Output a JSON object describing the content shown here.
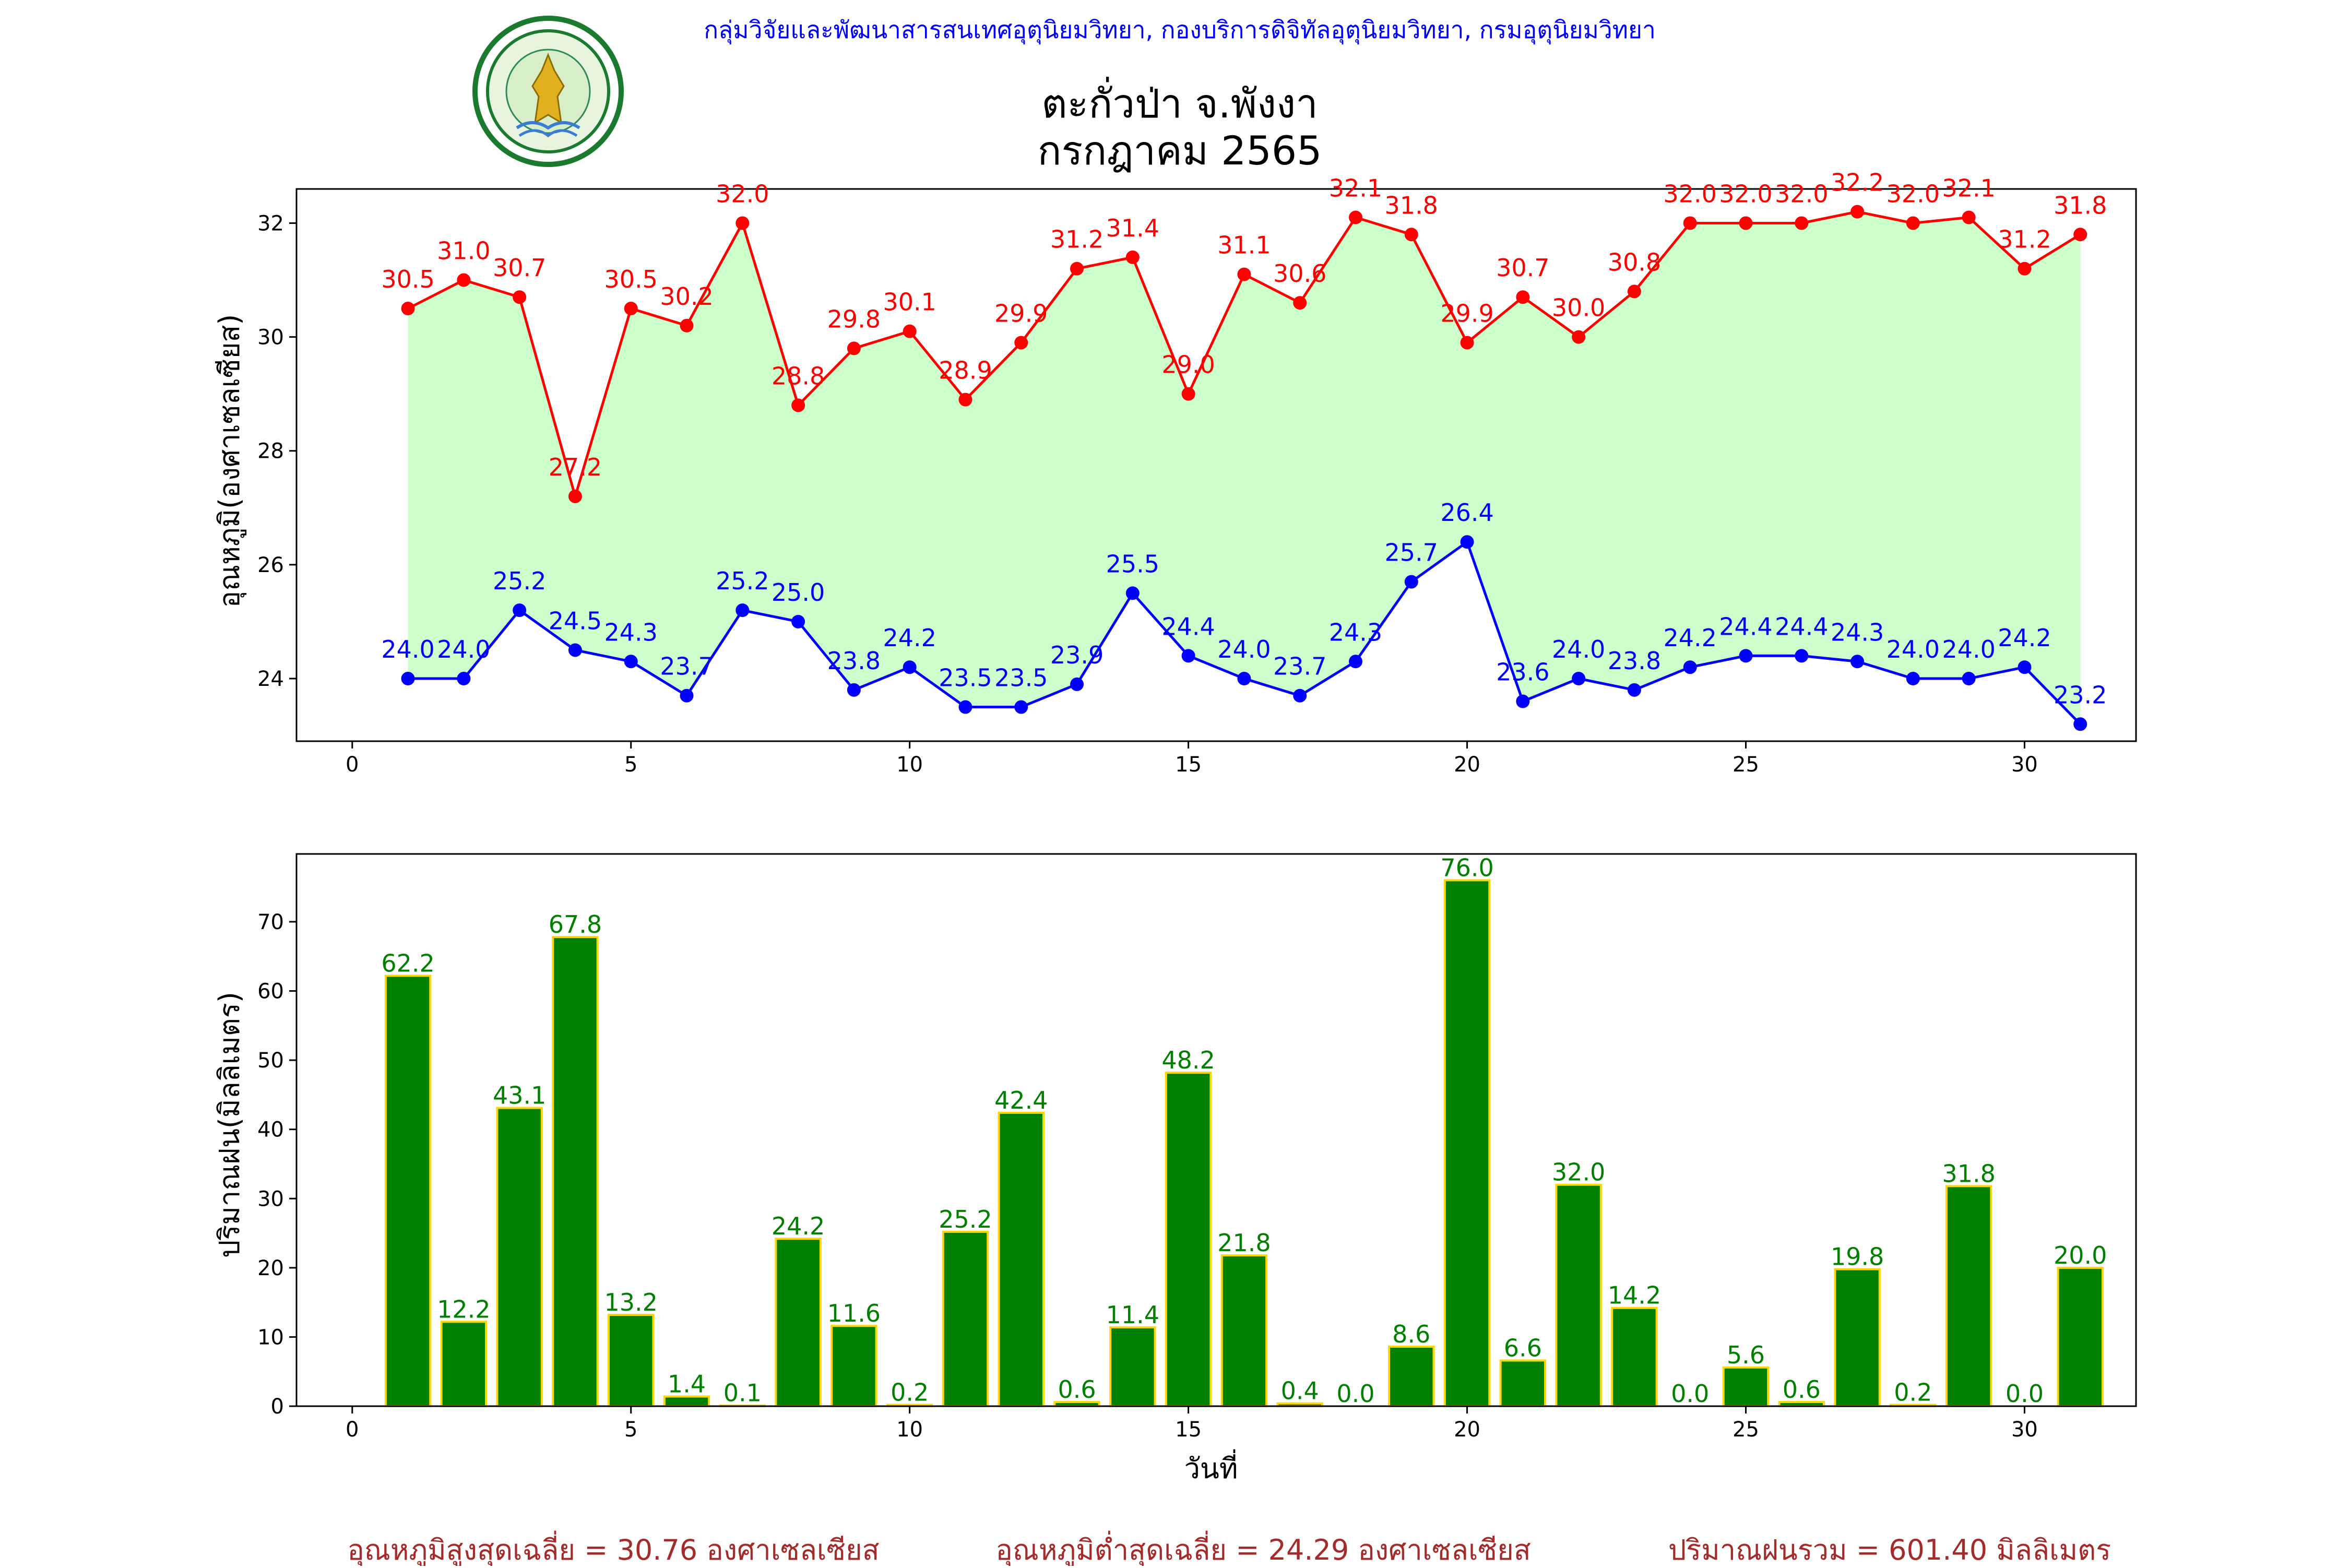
{
  "header": {
    "agency_line": "กลุ่มวิจัยและพัฒนาสารสนเทศอุตุนิยมวิทยา, กองบริการดิจิทัลอุตุนิยมวิทยา, กรมอุตุนิยมวิทยา",
    "title_line1": "ตะกั่วป่า จ.พังงา",
    "title_line2": "กรกฎาคม 2565",
    "logo_text": "กรมอุตุนิยมวิทยา METEOROLOGICAL DEPARTMENT",
    "agency_color": "#0000ff"
  },
  "chart_data": [
    {
      "type": "line",
      "ylabel": "อุณหภูมิ(องศาเซลเซียส)",
      "xlim": [
        -1,
        32
      ],
      "ylim": [
        22.9,
        32.6
      ],
      "xticks": [
        0,
        5,
        10,
        15,
        20,
        25,
        30
      ],
      "yticks": [
        24,
        26,
        28,
        30,
        32
      ],
      "x": [
        1,
        2,
        3,
        4,
        5,
        6,
        7,
        8,
        9,
        10,
        11,
        12,
        13,
        14,
        15,
        16,
        17,
        18,
        19,
        20,
        21,
        22,
        23,
        24,
        25,
        26,
        27,
        28,
        29,
        30,
        31
      ],
      "fill_between": {
        "color": "#ccffcc"
      },
      "series": [
        {
          "color": "#ff0000",
          "values": [
            30.5,
            31.0,
            30.7,
            27.2,
            30.5,
            30.2,
            32.0,
            28.8,
            29.8,
            30.1,
            28.9,
            29.9,
            31.2,
            31.4,
            29.0,
            31.1,
            30.6,
            32.1,
            31.8,
            29.9,
            30.7,
            30.0,
            30.8,
            32.0,
            32.0,
            32.0,
            32.2,
            32.0,
            32.1,
            31.2,
            31.8
          ],
          "labels": [
            "30.5",
            "31.0",
            "30.7",
            "27.2",
            "30.5",
            "30.2",
            "32.0",
            "28.8",
            "29.8",
            "30.1",
            "28.9",
            "29.9",
            "31.2",
            "31.4",
            "29.0",
            "31.1",
            "30.6",
            "32.1",
            "31.8",
            "29.9",
            "30.7",
            "30.0",
            "30.8",
            "32.0",
            "32.0",
            "32.0",
            "32.2",
            "32.0",
            "32.1",
            "31.2",
            "31.8"
          ]
        },
        {
          "color": "#0000ff",
          "values": [
            24.0,
            24.0,
            25.2,
            24.5,
            24.3,
            23.7,
            25.2,
            25.0,
            23.8,
            24.2,
            23.5,
            23.5,
            23.9,
            25.5,
            24.4,
            24.0,
            23.7,
            24.3,
            25.7,
            26.4,
            23.6,
            24.0,
            23.8,
            24.2,
            24.4,
            24.4,
            24.3,
            24.0,
            24.0,
            24.2,
            23.2
          ],
          "labels": [
            "24.0",
            "24.0",
            "25.2",
            "24.5",
            "24.3",
            "23.7",
            "25.2",
            "25.0",
            "23.8",
            "24.2",
            "23.5",
            "23.5",
            "23.9",
            "25.5",
            "24.4",
            "24.0",
            "23.7",
            "24.3",
            "25.7",
            "26.4",
            "23.6",
            "24.0",
            "23.8",
            "24.2",
            "24.4",
            "24.4",
            "24.3",
            "24.0",
            "24.0",
            "24.2",
            "23.2"
          ]
        }
      ]
    },
    {
      "type": "bar",
      "xlabel": "วันที่",
      "ylabel": "ปริมาณฝน(มิลลิเมตร)",
      "xlim": [
        -1,
        32
      ],
      "ylim": [
        0,
        79.8
      ],
      "xticks": [
        0,
        5,
        10,
        15,
        20,
        25,
        30
      ],
      "yticks": [
        0,
        10,
        20,
        30,
        40,
        50,
        60,
        70
      ],
      "bar_color": "#008000",
      "edge_color": "#ffd700",
      "x": [
        1,
        2,
        3,
        4,
        5,
        6,
        7,
        8,
        9,
        10,
        11,
        12,
        13,
        14,
        15,
        16,
        17,
        18,
        19,
        20,
        21,
        22,
        23,
        24,
        25,
        26,
        27,
        28,
        29,
        30,
        31
      ],
      "values": [
        62.2,
        12.2,
        43.1,
        67.8,
        13.2,
        1.4,
        0.1,
        24.2,
        11.6,
        0.2,
        25.2,
        42.4,
        0.6,
        11.4,
        48.2,
        21.8,
        0.4,
        0.0,
        8.6,
        76.0,
        6.6,
        32.0,
        14.2,
        0.0,
        5.6,
        0.6,
        19.8,
        0.2,
        31.8,
        0.0,
        20.0
      ],
      "labels": [
        "62.2",
        "12.2",
        "43.1",
        "67.8",
        "13.2",
        "1.4",
        "0.1",
        "24.2",
        "11.6",
        "0.2",
        "25.2",
        "42.4",
        "0.6",
        "11.4",
        "48.2",
        "21.8",
        "0.4",
        "0.0",
        "8.6",
        "76.0",
        "6.6",
        "32.0",
        "14.2",
        "0.0",
        "5.6",
        "0.6",
        "19.8",
        "0.2",
        "31.8",
        "0.0",
        "20.0"
      ]
    }
  ],
  "footer": {
    "avg_max": "อุณหภูมิสูงสุดเฉลี่ย = 30.76 องศาเซลเซียส",
    "avg_min": "อุณหภูมิต่ำสุดเฉลี่ย = 24.29 องศาเซลเซียส",
    "rain_total": "ปริมาณฝนรวม = 601.40 มิลลิเมตร",
    "color": "#a52a2a"
  }
}
